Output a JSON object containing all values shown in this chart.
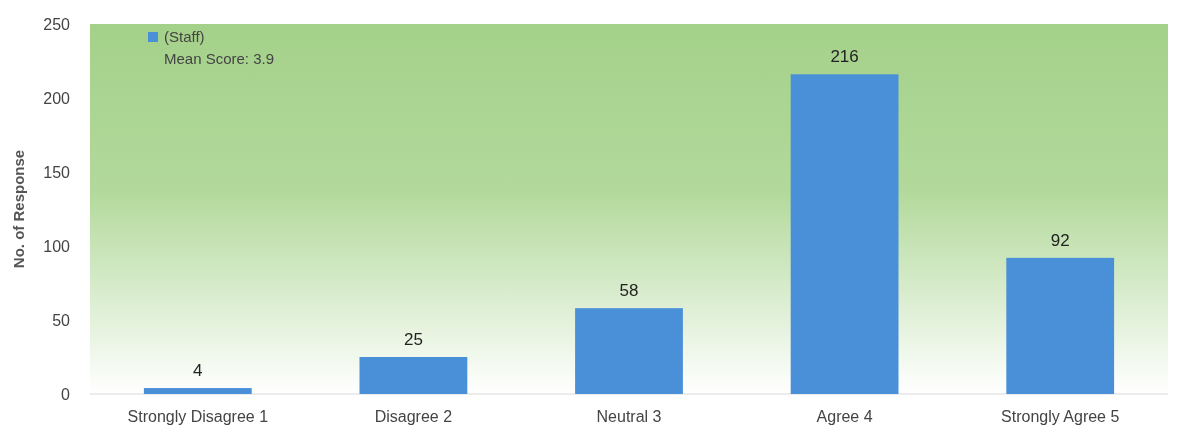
{
  "chart_data": {
    "type": "bar",
    "ylabel": "No. of Response",
    "categories": [
      "Strongly Disagree 1",
      "Disagree 2",
      "Neutral 3",
      "Agree 4",
      "Strongly Agree 5"
    ],
    "series": [
      {
        "name": "(Staff)",
        "color": "#4a90d9",
        "values": [
          4,
          25,
          58,
          216,
          92
        ]
      }
    ],
    "ylim": [
      0,
      250
    ],
    "yticks": [
      0,
      50,
      100,
      150,
      200,
      250
    ],
    "data_labels": true,
    "legend": "top left",
    "grid": false,
    "annotations": [
      "Mean Score: 3.9"
    ]
  }
}
